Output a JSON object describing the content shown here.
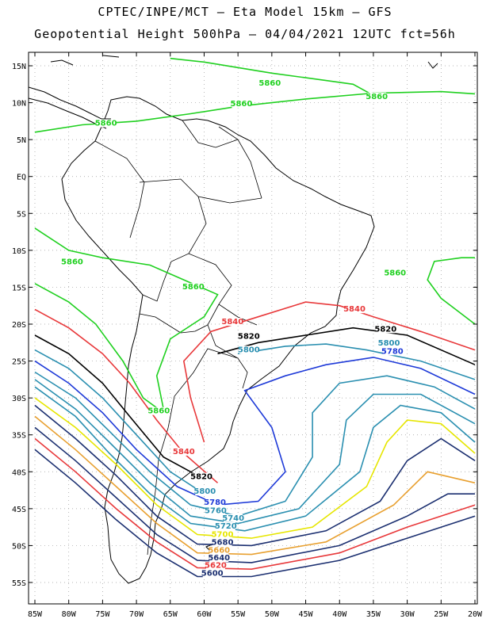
{
  "header": {
    "line1": "CPTEC/INPE/MCT –  Eta Model 15km – GFS",
    "line2": "Geopotential Height 500hPa – 04/04/2021 12UTC fct=56h"
  },
  "axes": {
    "lat_labels": [
      "15N",
      "10N",
      "5N",
      "EQ",
      "5S",
      "10S",
      "15S",
      "20S",
      "25S",
      "30S",
      "35S",
      "40S",
      "45S",
      "50S",
      "55S"
    ],
    "lon_labels": [
      "85W",
      "80W",
      "75W",
      "70W",
      "65W",
      "60W",
      "55W",
      "50W",
      "45W",
      "40W",
      "35W",
      "30W",
      "25W",
      "20W"
    ]
  },
  "colors": {
    "c5860": "#1fd01f",
    "c5840": "#e8383a",
    "c5820": "#000000",
    "c5800": "#2a8fb0",
    "c5780": "#1e3ad8",
    "land": "#000000"
  },
  "contour_labels": [
    {
      "text": "5860",
      "color": "#1fd01f",
      "lon": -50.3,
      "lat": 12.3
    },
    {
      "text": "5860",
      "color": "#1fd01f",
      "lon": -34.5,
      "lat": 10.5
    },
    {
      "text": "5860",
      "color": "#1fd01f",
      "lon": -54.5,
      "lat": 9.5
    },
    {
      "text": "5860",
      "color": "#1fd01f",
      "lon": -74.5,
      "lat": 6.9
    },
    {
      "text": "5860",
      "color": "#1fd01f",
      "lon": -79.5,
      "lat": -11.9
    },
    {
      "text": "5860",
      "color": "#1fd01f",
      "lon": -61.6,
      "lat": -15.3
    },
    {
      "text": "5860",
      "color": "#1fd01f",
      "lon": -31.8,
      "lat": -13.4
    },
    {
      "text": "5860",
      "color": "#1fd01f",
      "lon": -66.7,
      "lat": -32.1
    },
    {
      "text": "5840",
      "color": "#e8383a",
      "lon": -55.8,
      "lat": -20.0
    },
    {
      "text": "5840",
      "color": "#e8383a",
      "lon": -37.8,
      "lat": -18.3
    },
    {
      "text": "5840",
      "color": "#e8383a",
      "lon": -63.0,
      "lat": -37.6
    },
    {
      "text": "5820",
      "color": "#000000",
      "lon": -53.4,
      "lat": -22.0
    },
    {
      "text": "5820",
      "color": "#000000",
      "lon": -33.2,
      "lat": -21.0
    },
    {
      "text": "5820",
      "color": "#000000",
      "lon": -60.4,
      "lat": -41.0
    },
    {
      "text": "5800",
      "color": "#2a8fb0",
      "lon": -53.4,
      "lat": -23.8
    },
    {
      "text": "5800",
      "color": "#2a8fb0",
      "lon": -32.7,
      "lat": -22.9
    },
    {
      "text": "5800",
      "color": "#2a8fb0",
      "lon": -59.9,
      "lat": -43.0
    },
    {
      "text": "5780",
      "color": "#1e3ad8",
      "lon": -32.2,
      "lat": -24.0
    },
    {
      "text": "5780",
      "color": "#1e3ad8",
      "lon": -58.4,
      "lat": -44.5
    },
    {
      "text": "5760",
      "color": "#2a8fb0",
      "lon": -58.3,
      "lat": -45.6
    },
    {
      "text": "5740",
      "color": "#2a8fb0",
      "lon": -55.7,
      "lat": -46.6
    },
    {
      "text": "5720",
      "color": "#2a8fb0",
      "lon": -56.8,
      "lat": -47.7
    },
    {
      "text": "5700",
      "color": "#e6e600",
      "lon": -57.3,
      "lat": -48.8
    },
    {
      "text": "5680",
      "color": "#1b2f70",
      "lon": -57.3,
      "lat": -49.9
    },
    {
      "text": "5660",
      "color": "#e8a030",
      "lon": -57.8,
      "lat": -51.0
    },
    {
      "text": "5640",
      "color": "#1b2f70",
      "lon": -57.8,
      "lat": -52.0
    },
    {
      "text": "5620",
      "color": "#e8383a",
      "lon": -58.3,
      "lat": -53.0
    },
    {
      "text": "5600",
      "color": "#1b2f70",
      "lon": -58.8,
      "lat": -54.1
    }
  ]
}
